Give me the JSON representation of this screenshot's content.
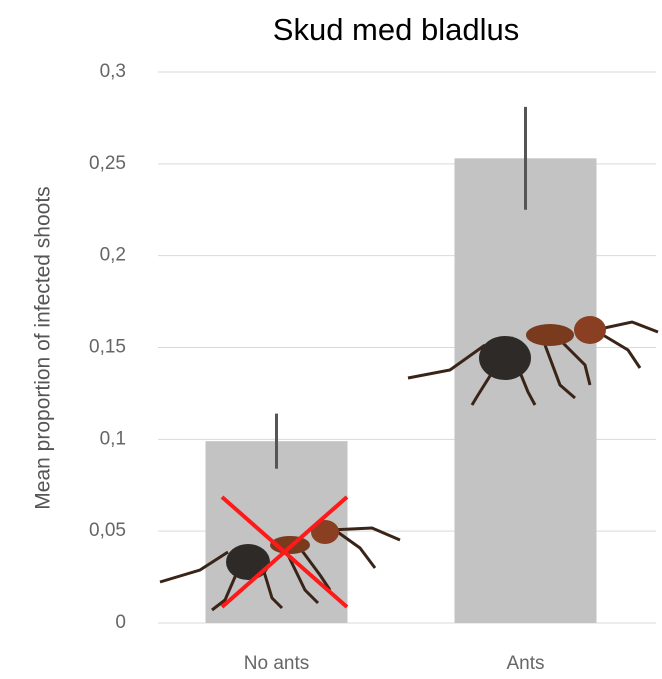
{
  "chart_data": {
    "type": "bar",
    "title": "Skud med bladlus",
    "y_label": "Mean proportion of infected shoots",
    "categories": [
      "No ants",
      "Ants"
    ],
    "series": [
      {
        "color": "#c3c3c3",
        "values": [
          0.099,
          0.253
        ],
        "errors": [
          0.015,
          0.028
        ]
      }
    ],
    "ylim": [
      0,
      0.3
    ],
    "yticks": [
      0,
      {
        "value": 0.05,
        "label": "0,05"
      },
      {
        "value": 0.1,
        "label": "0,1"
      },
      {
        "value": 0.15,
        "label": "0,15"
      },
      {
        "value": 0.2,
        "label": "0,2"
      },
      {
        "value": 0.25,
        "label": "0,25"
      },
      {
        "value": 0.3,
        "label": "0,3"
      }
    ],
    "grid": true
  }
}
